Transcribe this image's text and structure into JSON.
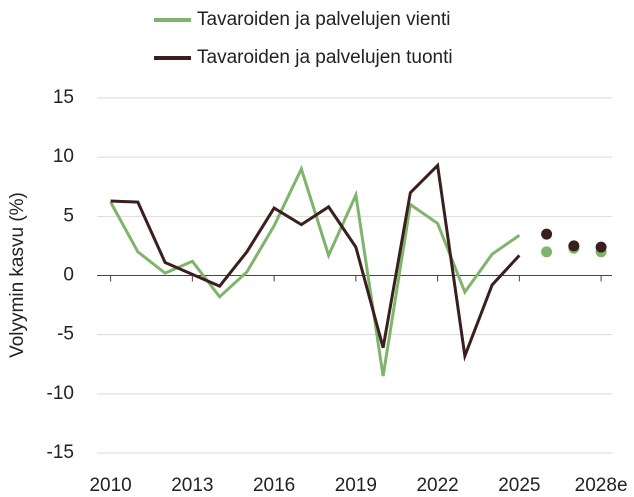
{
  "chart_data": {
    "type": "line",
    "y_label": "Volyymin kasvu (%)",
    "x": [
      2010,
      2011,
      2012,
      2013,
      2014,
      2015,
      2016,
      2017,
      2018,
      2019,
      2020,
      2021,
      2022,
      2023,
      2024,
      2025
    ],
    "forecast_x": [
      2026,
      2027,
      2028
    ],
    "series": [
      {
        "name": "Tavaroiden ja palvelujen vienti",
        "color": "#7fb56a",
        "values": [
          6.2,
          2.0,
          0.2,
          1.2,
          -1.8,
          0.3,
          4.2,
          9.0,
          1.7,
          6.8,
          -8.5,
          6.0,
          4.4,
          -1.4,
          1.8,
          3.4
        ],
        "forecast_values": [
          2.0,
          2.3,
          2.0
        ]
      },
      {
        "name": "Tavaroiden ja palvelujen tuonti",
        "color": "#3b1f1f",
        "values": [
          6.3,
          6.2,
          1.1,
          0.1,
          -0.9,
          2.0,
          5.7,
          4.3,
          5.8,
          2.4,
          -6.1,
          7.0,
          9.3,
          -6.8,
          -0.8,
          1.7
        ],
        "forecast_values": [
          3.5,
          2.5,
          2.4
        ]
      }
    ],
    "xlim": [
      2009.5,
      2028.4
    ],
    "xticks": [
      2010,
      2013,
      2016,
      2019,
      2022,
      2025,
      {
        "value": 2028,
        "label": "2028e"
      }
    ],
    "ylim": [
      -15,
      15
    ],
    "yticks": [
      -15,
      -10,
      -5,
      0,
      5,
      10,
      15
    ],
    "grid": true
  }
}
